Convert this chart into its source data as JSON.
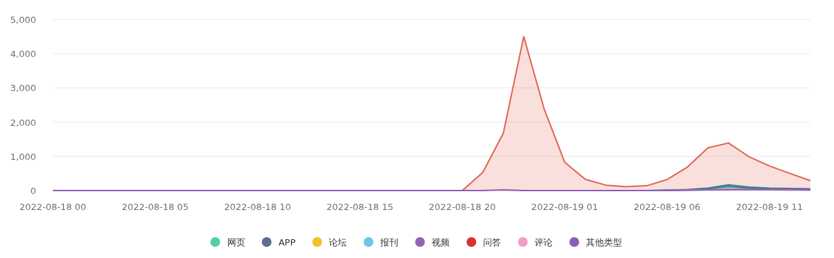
{
  "chart_data": {
    "type": "area",
    "x": [
      "2022-08-18T00:00",
      "2022-08-18T01:00",
      "2022-08-18T02:00",
      "2022-08-18T03:00",
      "2022-08-18T04:00",
      "2022-08-18T05:00",
      "2022-08-18T06:00",
      "2022-08-18T07:00",
      "2022-08-18T08:00",
      "2022-08-18T09:00",
      "2022-08-18T10:00",
      "2022-08-18T11:00",
      "2022-08-18T12:00",
      "2022-08-18T13:00",
      "2022-08-18T14:00",
      "2022-08-18T15:00",
      "2022-08-18T16:00",
      "2022-08-18T17:00",
      "2022-08-18T18:00",
      "2022-08-18T19:00",
      "2022-08-18T20:00",
      "2022-08-18T21:00",
      "2022-08-18T22:00",
      "2022-08-18T23:00",
      "2022-08-19T00:00",
      "2022-08-19T01:00",
      "2022-08-19T02:00",
      "2022-08-19T03:00",
      "2022-08-19T04:00",
      "2022-08-19T05:00",
      "2022-08-19T06:00",
      "2022-08-19T07:00",
      "2022-08-19T08:00",
      "2022-08-19T09:00",
      "2022-08-19T10:00",
      "2022-08-19T11:00",
      "2022-08-19T12:00",
      "2022-08-19T13:00"
    ],
    "series": [
      {
        "name": "网页",
        "color": "#4fd1a5",
        "values": [
          null,
          null,
          null,
          null,
          null,
          null,
          null,
          null,
          null,
          null,
          null,
          null,
          null,
          null,
          null,
          null,
          null,
          null,
          null,
          null,
          null,
          null,
          null,
          null,
          null,
          null,
          null,
          null,
          null,
          null,
          null,
          null,
          null,
          null,
          null,
          null,
          null,
          null
        ]
      },
      {
        "color": "#e0624f",
        "values": [
          null,
          null,
          null,
          null,
          null,
          null,
          null,
          null,
          null,
          null,
          0,
          0,
          0,
          0,
          0,
          0,
          0,
          0,
          0,
          0,
          0,
          530,
          1670,
          4500,
          2380,
          830,
          330,
          160,
          110,
          140,
          320,
          690,
          1250,
          1390,
          990,
          720,
          500,
          290
        ]
      },
      {
        "name": "APP",
        "color": "#5b6e96",
        "values": [
          null,
          null,
          null,
          null,
          null,
          null,
          null,
          null,
          null,
          null,
          null,
          null,
          null,
          null,
          null,
          null,
          null,
          null,
          null,
          null,
          null,
          null,
          null,
          null,
          null,
          null,
          null,
          null,
          null,
          0,
          10,
          30,
          70,
          170,
          100,
          70,
          60,
          50
        ]
      },
      {
        "name": "论坛",
        "color": "#f5c02a",
        "values": [
          null,
          null,
          null,
          null,
          null,
          null,
          null,
          null,
          null,
          null,
          null,
          null,
          null,
          null,
          null,
          null,
          null,
          null,
          null,
          null,
          null,
          null,
          null,
          null,
          null,
          null,
          null,
          null,
          null,
          null,
          null,
          null,
          null,
          null,
          null,
          null,
          null,
          null
        ]
      },
      {
        "name": "报刊",
        "color": "#6bc7e6",
        "values": [
          null,
          null,
          null,
          null,
          null,
          null,
          null,
          null,
          null,
          null,
          null,
          null,
          null,
          null,
          null,
          null,
          null,
          null,
          null,
          null,
          null,
          null,
          null,
          null,
          null,
          null,
          null,
          null,
          null,
          null,
          null,
          null,
          null,
          null,
          null,
          null,
          null,
          null
        ]
      },
      {
        "name": "视频",
        "color": "#9363b8",
        "values": [
          null,
          null,
          null,
          null,
          null,
          null,
          null,
          null,
          null,
          null,
          null,
          null,
          null,
          null,
          null,
          null,
          null,
          null,
          null,
          null,
          null,
          null,
          null,
          null,
          null,
          null,
          null,
          null,
          null,
          null,
          null,
          null,
          null,
          null,
          null,
          null,
          null,
          null
        ]
      },
      {
        "color": "#1f8f8a",
        "values": [
          null,
          null,
          null,
          null,
          null,
          null,
          null,
          null,
          null,
          null,
          null,
          null,
          null,
          null,
          null,
          null,
          null,
          null,
          null,
          null,
          null,
          null,
          null,
          null,
          null,
          null,
          null,
          null,
          null,
          0,
          10,
          20,
          50,
          120,
          70,
          50,
          40,
          30
        ]
      },
      {
        "name": "问答",
        "color": "#d83232",
        "values": [
          null,
          null,
          null,
          null,
          null,
          null,
          null,
          null,
          null,
          null,
          null,
          null,
          null,
          null,
          null,
          null,
          null,
          null,
          null,
          null,
          null,
          null,
          null,
          null,
          null,
          null,
          null,
          null,
          null,
          null,
          null,
          null,
          null,
          null,
          null,
          null,
          null,
          null
        ]
      },
      {
        "name": "评论",
        "color": "#f59bc4",
        "values": [
          null,
          null,
          null,
          null,
          null,
          null,
          null,
          null,
          null,
          null,
          null,
          null,
          null,
          null,
          null,
          null,
          null,
          null,
          null,
          null,
          null,
          null,
          null,
          null,
          null,
          null,
          null,
          null,
          null,
          null,
          0,
          10,
          20,
          30,
          20,
          20,
          10,
          10
        ]
      },
      {
        "name": "其他类型",
        "color": "#8e5db5",
        "values": [
          0,
          0,
          0,
          0,
          0,
          0,
          0,
          0,
          0,
          0,
          0,
          0,
          0,
          0,
          0,
          0,
          0,
          0,
          0,
          0,
          0,
          0,
          20,
          0,
          0,
          0,
          0,
          0,
          0,
          0,
          0,
          10,
          20,
          30,
          30,
          30,
          30,
          20
        ]
      }
    ],
    "xlim": [
      "2022-08-18T00:00",
      "2022-08-19T13:00"
    ],
    "xticks": [
      {
        "value": "2022-08-18T00:00",
        "label": "2022-08-18 00"
      },
      {
        "value": "2022-08-18T05:00",
        "label": "2022-08-18 05"
      },
      {
        "value": "2022-08-18T10:00",
        "label": "2022-08-18 10"
      },
      {
        "value": "2022-08-18T15:00",
        "label": "2022-08-18 15"
      },
      {
        "value": "2022-08-18T20:00",
        "label": "2022-08-18 20"
      },
      {
        "value": "2022-08-19T01:00",
        "label": "2022-08-19 01"
      },
      {
        "value": "2022-08-19T06:00",
        "label": "2022-08-19 06"
      },
      {
        "value": "2022-08-19T11:00",
        "label": "2022-08-19 11"
      }
    ],
    "ylim": [
      0,
      5000
    ],
    "yticks": [
      0,
      {
        "value": 1000,
        "label": "1,000"
      },
      {
        "value": 2000,
        "label": "2,000"
      },
      {
        "value": 3000,
        "label": "3,000"
      },
      {
        "value": 4000,
        "label": "4,000"
      },
      {
        "value": 5000,
        "label": "5,000"
      }
    ],
    "grid": "y",
    "legend": "bottom",
    "marker": "none",
    "line_style": "solid"
  }
}
